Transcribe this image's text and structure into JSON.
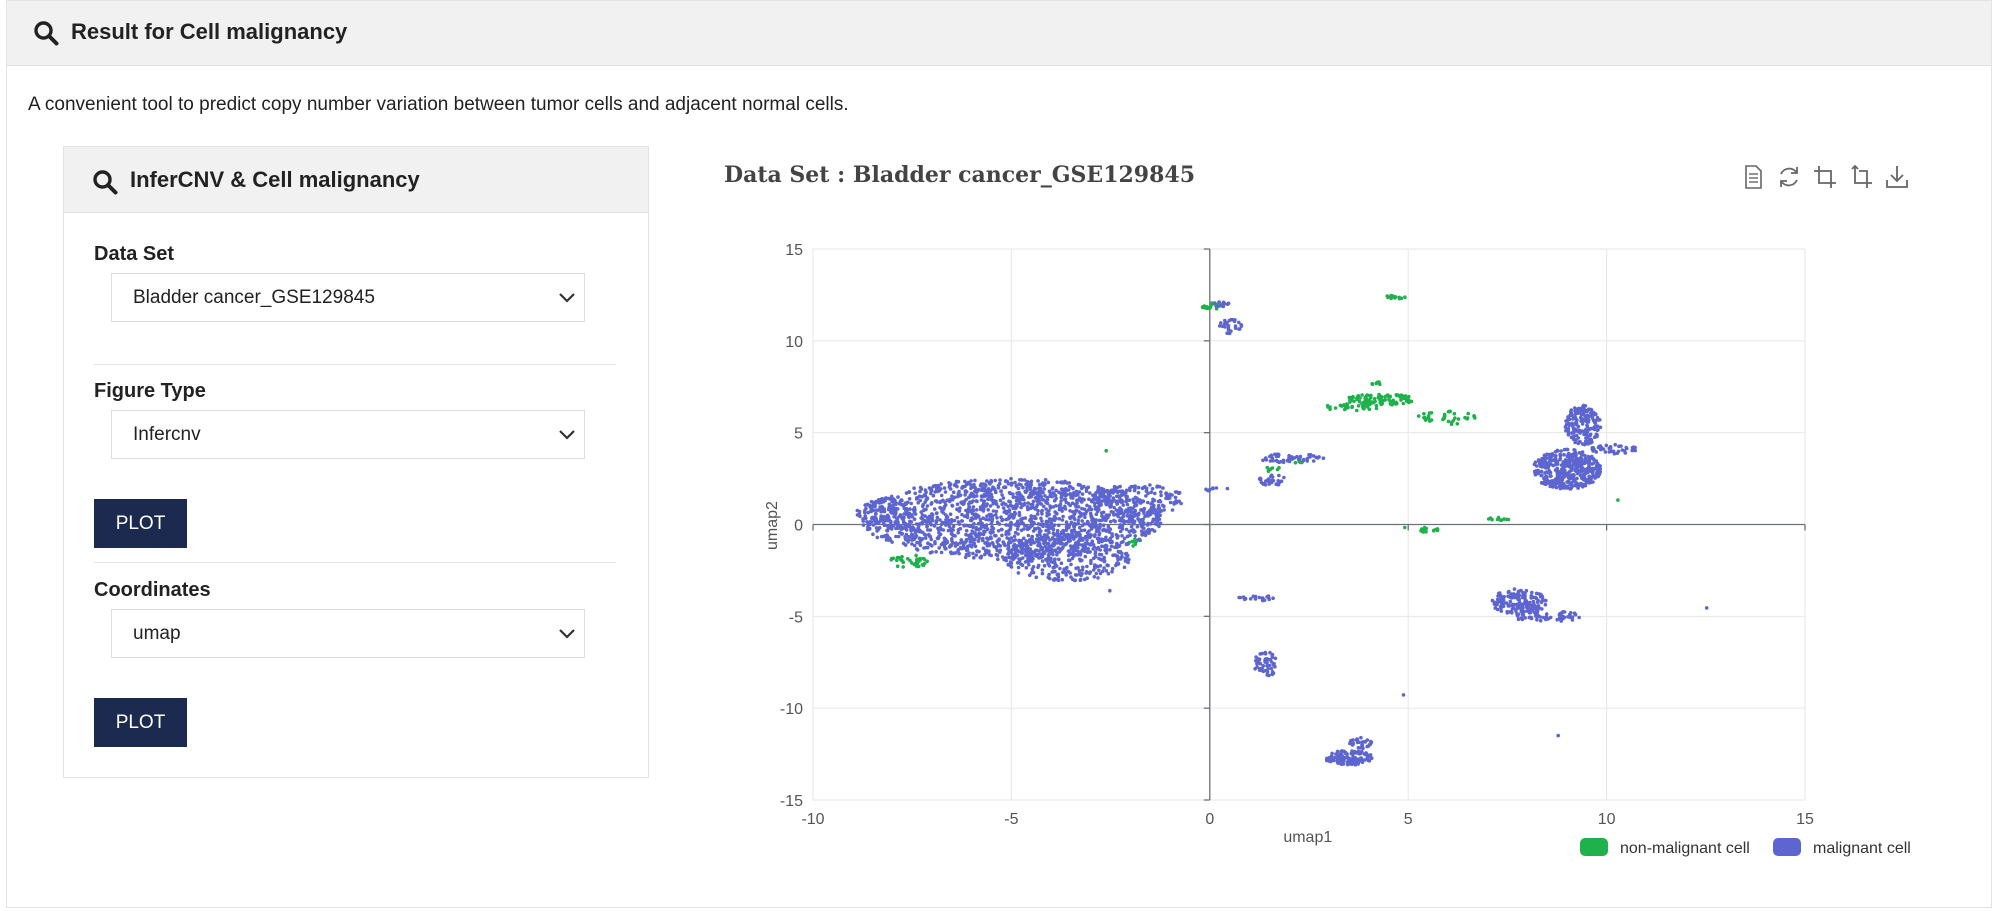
{
  "header": {
    "title": "Result for Cell malignancy",
    "icon": "search-icon"
  },
  "description": "A convenient tool to predict copy number variation between tumor cells and adjacent normal cells.",
  "panel": {
    "title": "InferCNV & Cell malignancy",
    "icon": "search-icon",
    "dataset": {
      "label": "Data Set",
      "value": "Bladder cancer_GSE129845"
    },
    "figure_type": {
      "label": "Figure Type",
      "value": "Infercnv"
    },
    "plot1_label": "PLOT",
    "coordinates": {
      "label": "Coordinates",
      "value": "umap"
    },
    "plot2_label": "PLOT"
  },
  "toolbox": [
    "data-view-icon",
    "restore-icon",
    "zoom-icon",
    "zoom-reset-icon",
    "download-icon"
  ],
  "chart_data": {
    "type": "scatter",
    "title": "Data Set : Bladder cancer_GSE129845",
    "xlabel": "umap1",
    "ylabel": "umap2",
    "xlim": [
      -10,
      15
    ],
    "ylim": [
      -15,
      15
    ],
    "xticks": [
      -10,
      -5,
      0,
      5,
      10,
      15
    ],
    "yticks": [
      15,
      10,
      5,
      0,
      -5,
      -10,
      -15
    ],
    "grid": true,
    "legend_position": "bottom-right",
    "series": [
      {
        "name": "non-malignant cell",
        "color": "#1fb14c",
        "clusters": [
          {
            "cx": 0.1,
            "cy": 11.9,
            "rx": 0.3,
            "ry": 0.25,
            "n": 22
          },
          {
            "cx": 4.7,
            "cy": 12.4,
            "rx": 0.25,
            "ry": 0.15,
            "n": 12
          },
          {
            "cx": 4.2,
            "cy": 7.7,
            "rx": 0.15,
            "ry": 0.15,
            "n": 6
          },
          {
            "cx": 4.3,
            "cy": 6.8,
            "rx": 0.9,
            "ry": 0.3,
            "n": 90
          },
          {
            "cx": 3.5,
            "cy": 6.4,
            "rx": 0.8,
            "ry": 0.2,
            "n": 30
          },
          {
            "cx": 6.0,
            "cy": 5.8,
            "rx": 0.8,
            "ry": 0.4,
            "n": 35
          },
          {
            "cx": -7.6,
            "cy": -2.0,
            "rx": 0.5,
            "ry": 0.35,
            "n": 35
          },
          {
            "cx": -1.9,
            "cy": -1.0,
            "rx": 0.2,
            "ry": 0.2,
            "n": 8
          },
          {
            "cx": 1.7,
            "cy": 3.0,
            "rx": 0.3,
            "ry": 0.2,
            "n": 8
          },
          {
            "cx": 2.2,
            "cy": 3.4,
            "rx": 0.2,
            "ry": 0.1,
            "n": 5
          },
          {
            "cx": 5.5,
            "cy": -0.3,
            "rx": 0.3,
            "ry": 0.15,
            "n": 14
          },
          {
            "cx": 7.3,
            "cy": 0.3,
            "rx": 0.3,
            "ry": 0.1,
            "n": 10
          },
          {
            "cx": -2.6,
            "cy": 4.0,
            "rx": 0.05,
            "ry": 0.05,
            "n": 1
          },
          {
            "cx": 4.9,
            "cy": -0.2,
            "rx": 0.05,
            "ry": 0.05,
            "n": 1
          },
          {
            "cx": 10.3,
            "cy": 1.3,
            "rx": 0.05,
            "ry": 0.05,
            "n": 1
          }
        ]
      },
      {
        "name": "malignant cell",
        "color": "#5d65d0",
        "clusters": [
          {
            "cx": -5.0,
            "cy": 0.3,
            "rx": 3.8,
            "ry": 2.2,
            "n": 1700
          },
          {
            "cx": -3.6,
            "cy": -1.8,
            "rx": 1.6,
            "ry": 1.3,
            "n": 320
          },
          {
            "cx": -1.8,
            "cy": 1.3,
            "rx": 1.2,
            "ry": 0.9,
            "n": 140
          },
          {
            "cx": -8.2,
            "cy": 0.6,
            "rx": 0.7,
            "ry": 0.9,
            "n": 90
          },
          {
            "cx": 0.5,
            "cy": 10.8,
            "rx": 0.3,
            "ry": 0.4,
            "n": 28
          },
          {
            "cx": 0.3,
            "cy": 12.0,
            "rx": 0.2,
            "ry": 0.15,
            "n": 10
          },
          {
            "cx": 1.7,
            "cy": 3.6,
            "rx": 0.4,
            "ry": 0.3,
            "n": 30
          },
          {
            "cx": 1.6,
            "cy": 2.4,
            "rx": 0.4,
            "ry": 0.3,
            "n": 30
          },
          {
            "cx": 2.5,
            "cy": 3.6,
            "rx": 0.4,
            "ry": 0.2,
            "n": 20
          },
          {
            "cx": 9.0,
            "cy": 3.0,
            "rx": 0.85,
            "ry": 1.1,
            "n": 420
          },
          {
            "cx": 9.4,
            "cy": 5.4,
            "rx": 0.45,
            "ry": 1.1,
            "n": 170
          },
          {
            "cx": 10.2,
            "cy": 4.1,
            "rx": 0.6,
            "ry": 0.25,
            "n": 40
          },
          {
            "cx": 7.8,
            "cy": -4.2,
            "rx": 0.7,
            "ry": 0.7,
            "n": 160
          },
          {
            "cx": 8.5,
            "cy": -5.0,
            "rx": 0.9,
            "ry": 0.3,
            "n": 60
          },
          {
            "cx": 1.2,
            "cy": -4.0,
            "rx": 0.5,
            "ry": 0.15,
            "n": 20
          },
          {
            "cx": 1.4,
            "cy": -7.6,
            "rx": 0.3,
            "ry": 0.7,
            "n": 50
          },
          {
            "cx": 3.5,
            "cy": -12.7,
            "rx": 0.6,
            "ry": 0.4,
            "n": 120
          },
          {
            "cx": 3.8,
            "cy": -11.9,
            "rx": 0.3,
            "ry": 0.3,
            "n": 30
          },
          {
            "cx": 0.2,
            "cy": 1.9,
            "rx": 0.3,
            "ry": 0.1,
            "n": 8
          },
          {
            "cx": 12.5,
            "cy": -4.5,
            "rx": 0.05,
            "ry": 0.05,
            "n": 1
          },
          {
            "cx": 8.8,
            "cy": -11.5,
            "rx": 0.05,
            "ry": 0.05,
            "n": 1
          },
          {
            "cx": 4.9,
            "cy": -9.3,
            "rx": 0.05,
            "ry": 0.05,
            "n": 1
          },
          {
            "cx": -2.5,
            "cy": -3.6,
            "rx": 0.05,
            "ry": 0.05,
            "n": 1
          }
        ]
      }
    ]
  }
}
